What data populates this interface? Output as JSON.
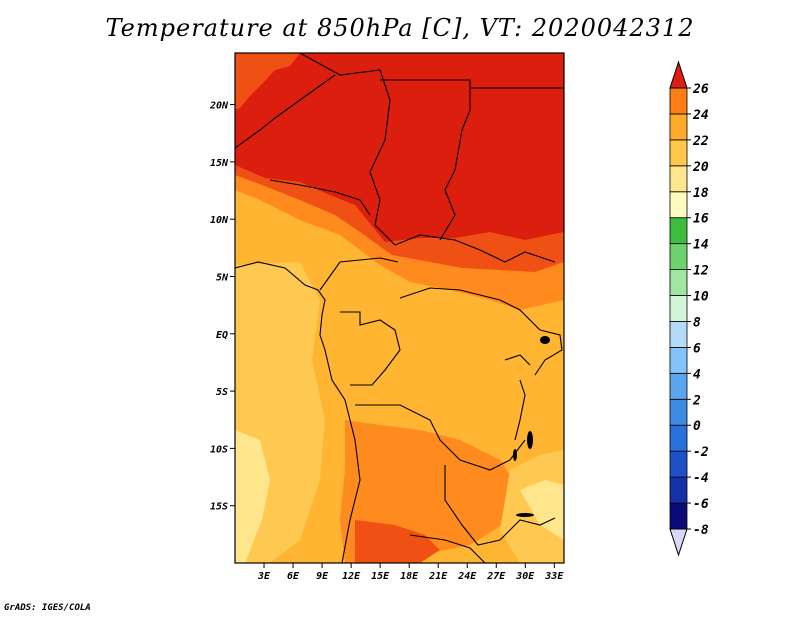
{
  "title": "Temperature at 850hPa [C], VT: 2020042312",
  "credit": "GrADS: IGES/COLA",
  "map": {
    "lat_range": [
      -20,
      24.5
    ],
    "lon_range": [
      0,
      34
    ],
    "lat_ticks": [
      {
        "value": 20,
        "label": "20N"
      },
      {
        "value": 15,
        "label": "15N"
      },
      {
        "value": 10,
        "label": "10N"
      },
      {
        "value": 5,
        "label": "5N"
      },
      {
        "value": 0,
        "label": "EQ"
      },
      {
        "value": -5,
        "label": "5S"
      },
      {
        "value": -10,
        "label": "10S"
      },
      {
        "value": -15,
        "label": "15S"
      }
    ],
    "lon_ticks": [
      {
        "value": 3,
        "label": "3E"
      },
      {
        "value": 6,
        "label": "6E"
      },
      {
        "value": 9,
        "label": "9E"
      },
      {
        "value": 12,
        "label": "12E"
      },
      {
        "value": 15,
        "label": "15E"
      },
      {
        "value": 18,
        "label": "18E"
      },
      {
        "value": 21,
        "label": "21E"
      },
      {
        "value": 24,
        "label": "24E"
      },
      {
        "value": 27,
        "label": "27E"
      },
      {
        "value": 30,
        "label": "30E"
      },
      {
        "value": 33,
        "label": "33E"
      }
    ]
  },
  "colorbar": {
    "levels": [
      "-8",
      "-6",
      "-4",
      "-2",
      "0",
      "2",
      "4",
      "6",
      "8",
      "10",
      "12",
      "14",
      "16",
      "18",
      "20",
      "22",
      "24",
      "26"
    ],
    "colors": [
      "#d8d8f6",
      "#0a0a78",
      "#1432a8",
      "#1e50c8",
      "#2870dc",
      "#3c8ce6",
      "#5aa5f0",
      "#82c3fa",
      "#b4dcfa",
      "#d2f5d7",
      "#a0e6a0",
      "#6ed26e",
      "#3cbe3c",
      "#fffabe",
      "#ffe68c",
      "#ffc84b",
      "#ffaa28",
      "#ff7d14",
      "#f05014",
      "#dc1e0f"
    ]
  }
}
